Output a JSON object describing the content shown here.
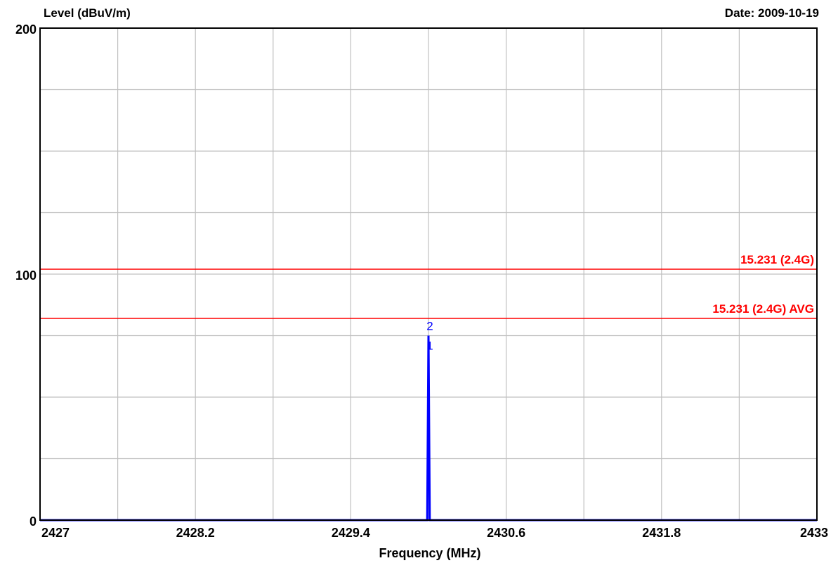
{
  "chart_data": {
    "type": "line",
    "ylabel": "Level (dBuV/m)",
    "xlabel": "Frequency (MHz)",
    "date": "Date: 2009-10-19",
    "xlim": [
      2427,
      2433
    ],
    "ylim": [
      0,
      200
    ],
    "x_ticks": [
      2427,
      2428.2,
      2429.4,
      2430.6,
      2431.8,
      2433
    ],
    "x_tick_labels": [
      "2427",
      "2428.2",
      "2429.4",
      "2430.6",
      "2431.8",
      "2433"
    ],
    "y_tick_labels": [
      {
        "value": 0,
        "label": "0"
      },
      {
        "value": 100,
        "label": "100"
      },
      {
        "value": 200,
        "label": "200"
      }
    ],
    "x_grid_step": 0.6,
    "y_grid_step": 25,
    "grid": true,
    "limit_lines": [
      {
        "name": "15.231 (2.4G)",
        "value": 102,
        "color": "#ff0000"
      },
      {
        "name": "15.231 (2.4G) AVG",
        "value": 82,
        "color": "#ff0000"
      }
    ],
    "series": [
      {
        "color": "#0000ff",
        "x": [
          2427,
          2429.99,
          2430.0,
          2430.01,
          2433
        ],
        "y": [
          0,
          0,
          75,
          0,
          0
        ]
      }
    ],
    "markers": [
      {
        "label": "2",
        "x": 2430.0,
        "y": 75
      },
      {
        "label": "1",
        "x": 2430.0,
        "y": 67
      }
    ]
  }
}
